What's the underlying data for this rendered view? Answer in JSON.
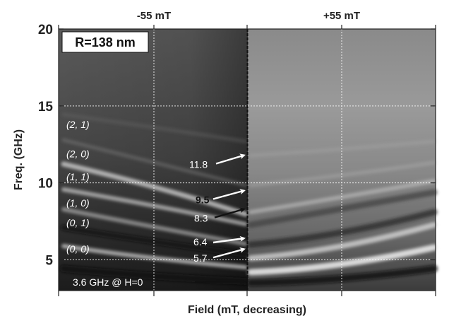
{
  "chart_data": {
    "type": "heatmap",
    "title_left": "-55 mT",
    "title_right": "+55 mT",
    "xlabel": "Field (mT, decreasing)",
    "ylabel": "Freq. (GHz)",
    "ylim": [
      3,
      20
    ],
    "y_ticks": [
      5,
      10,
      15,
      20
    ],
    "grid": true,
    "inset_label": "R=138 nm",
    "mode_labels": [
      "(2, 1)",
      "(2, 0)",
      "(1, 1)",
      "(1, 0)",
      "(0, 1)",
      "(0, 0)"
    ],
    "mode_label_freqs": [
      13.8,
      11.9,
      10.4,
      8.7,
      7.4,
      5.7
    ],
    "annotations": [
      {
        "text": "11.8",
        "freq": 11.8,
        "arrow_color": "white",
        "text_color": "white"
      },
      {
        "text": "9.5",
        "freq": 9.5,
        "arrow_color": "white",
        "text_color": "black"
      },
      {
        "text": "8.3",
        "freq": 8.3,
        "arrow_color": "black",
        "text_color": "white"
      },
      {
        "text": "6.4",
        "freq": 6.4,
        "arrow_color": "white",
        "text_color": "white"
      },
      {
        "text": "5.7",
        "freq": 5.7,
        "arrow_color": "white",
        "text_color": "white"
      },
      {
        "text": "3.6 GHz @ H=0",
        "freq": 3.6,
        "arrow_color": "black",
        "text_color": "white"
      }
    ]
  }
}
